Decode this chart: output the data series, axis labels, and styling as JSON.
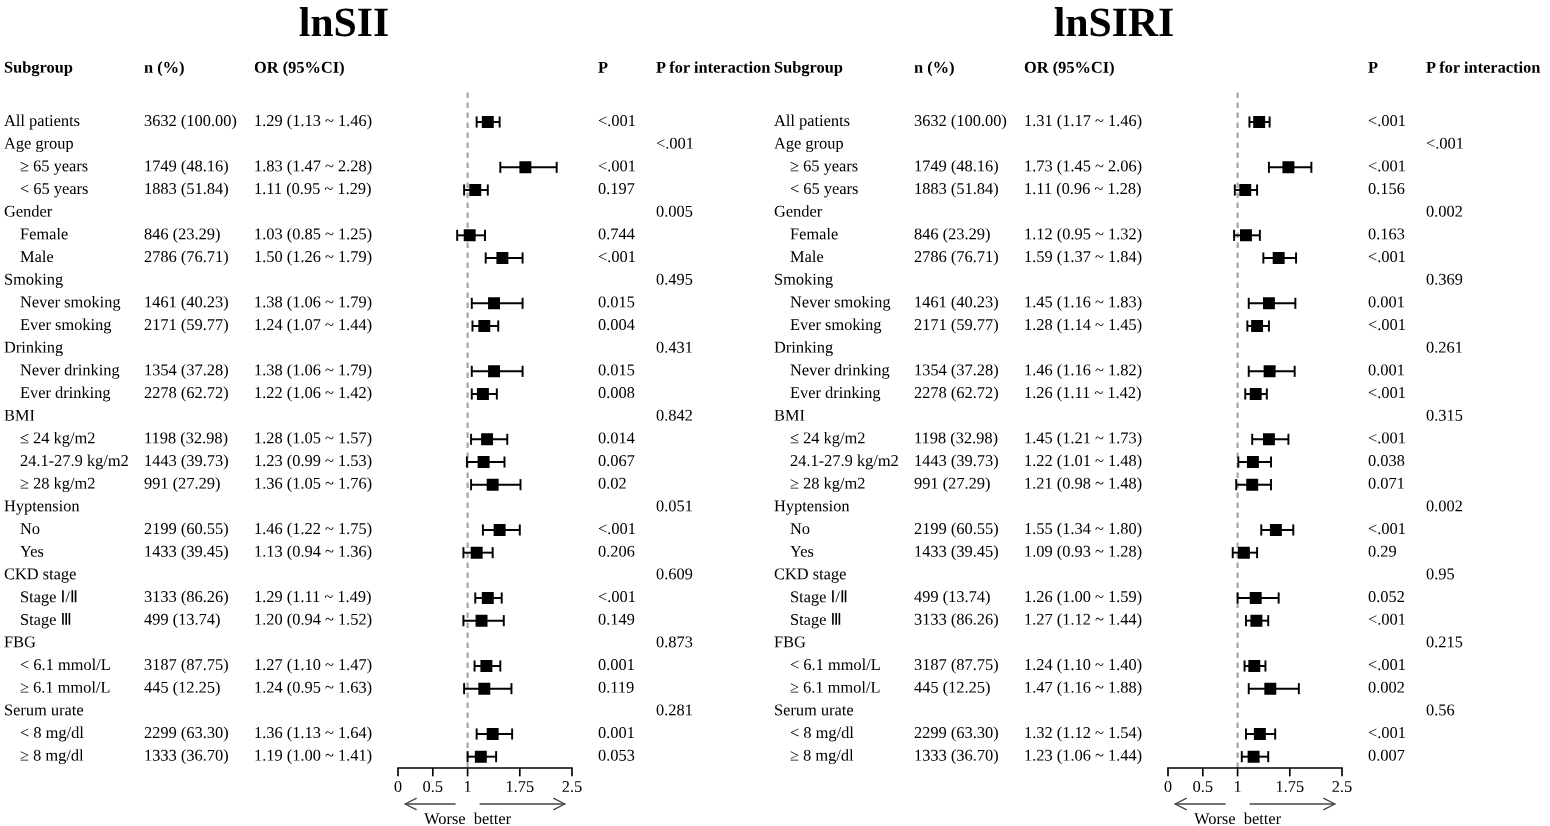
{
  "chart_data": [
    {
      "type": "scatter",
      "orientation": "horizontal",
      "title": "lnSII",
      "ylabel": "Subgroup",
      "xlabel": "Worse  better",
      "categories": [
        null,
        "All patients",
        "Age group",
        "≥ 65 years",
        "< 65 years",
        "Gender",
        "Female",
        "Male",
        "Smoking",
        "Never smoking",
        "Ever smoking",
        "Drinking",
        "Never drinking",
        "Ever drinking",
        "BMI",
        "≤ 24 kg/m2",
        "24.1-27.9 kg/m2",
        "≥ 28 kg/m2",
        "Hyptension",
        "No",
        "Yes",
        "CKD stage",
        "Stage Ⅰ/Ⅱ",
        "Stage Ⅲ",
        "FBG",
        "< 6.1 mmol/L",
        "≥ 6.1 mmol/L",
        "Serum urate",
        "< 8 mg/dl",
        "≥ 8 mg/dl"
      ],
      "series": [
        {
          "color": "#000000",
          "values": [
            null,
            1.29,
            null,
            1.83,
            1.11,
            null,
            1.03,
            1.5,
            null,
            1.38,
            1.24,
            null,
            1.38,
            1.22,
            null,
            1.28,
            1.23,
            1.36,
            null,
            1.46,
            1.13,
            null,
            1.29,
            1.2,
            null,
            1.27,
            1.24,
            null,
            1.36,
            1.19
          ],
          "errors": [
            null,
            [
              1.13,
              1.46
            ],
            null,
            [
              1.47,
              2.28
            ],
            [
              0.95,
              1.29
            ],
            null,
            [
              0.85,
              1.25
            ],
            [
              1.26,
              1.79
            ],
            null,
            [
              1.06,
              1.79
            ],
            [
              1.07,
              1.44
            ],
            null,
            [
              1.06,
              1.79
            ],
            [
              1.06,
              1.42
            ],
            null,
            [
              1.05,
              1.57
            ],
            [
              0.99,
              1.53
            ],
            [
              1.05,
              1.76
            ],
            null,
            [
              1.22,
              1.75
            ],
            [
              0.94,
              1.36
            ],
            null,
            [
              1.11,
              1.49
            ],
            [
              0.94,
              1.52
            ],
            null,
            [
              1.1,
              1.47
            ],
            [
              0.95,
              1.63
            ],
            null,
            [
              1.13,
              1.64
            ],
            [
              1.0,
              1.41
            ]
          ],
          "value_labels": [
            null,
            "1.29 (1.13 ~ 1.46)",
            null,
            "1.83 (1.47 ~ 2.28)",
            "1.11 (0.95 ~ 1.29)",
            null,
            "1.03 (0.85 ~ 1.25)",
            "1.50 (1.26 ~ 1.79)",
            null,
            "1.38 (1.06 ~ 1.79)",
            "1.24 (1.07 ~ 1.44)",
            null,
            "1.38 (1.06 ~ 1.79)",
            "1.22 (1.06 ~ 1.42)",
            null,
            "1.28 (1.05 ~ 1.57)",
            "1.23 (0.99 ~ 1.53)",
            "1.36 (1.05 ~ 1.76)",
            null,
            "1.46 (1.22 ~ 1.75)",
            "1.13 (0.94 ~ 1.36)",
            null,
            "1.29 (1.11 ~ 1.49)",
            "1.20 (0.94 ~ 1.52)",
            null,
            "1.27 (1.10 ~ 1.47)",
            "1.24 (0.95 ~ 1.63)",
            null,
            "1.36 (1.13 ~ 1.64)",
            "1.19 (1.00 ~ 1.41)"
          ]
        }
      ],
      "marker": "square",
      "xlim": [
        0,
        2.5
      ],
      "xticks": [
        0,
        0.5,
        1,
        1.75,
        2.5
      ],
      "grid": false,
      "tick_labels": "x",
      "ref_lines": [
        {
          "axis": "x",
          "value": 1,
          "color": "#a6a6a6",
          "line_style": "dashed"
        }
      ],
      "annotations": [
        "n (%)",
        "OR (95%CI)",
        "P",
        "P for interaction",
        "3632 (100.00)",
        "<.001",
        "<.001",
        "1749 (48.16)",
        "<.001",
        "1883 (51.84)",
        "0.197",
        "0.005",
        "846 (23.29)",
        "0.744",
        "2786 (76.71)",
        "<.001",
        "0.495",
        "1461 (40.23)",
        "0.015",
        "2171 (59.77)",
        "0.004",
        "0.431",
        "1354 (37.28)",
        "0.015",
        "2278 (62.72)",
        "0.008",
        "0.842",
        "1198 (32.98)",
        "0.014",
        "1443 (39.73)",
        "0.067",
        "991 (27.29)",
        "0.02",
        "0.051",
        "2199 (60.55)",
        "<.001",
        "1433 (39.45)",
        "0.206",
        "0.609",
        "3133 (86.26)",
        "<.001",
        "499 (13.74)",
        "0.149",
        "0.873",
        "3187 (87.75)",
        "0.001",
        "445 (12.25)",
        "0.119",
        "0.281",
        "2299 (63.30)",
        "0.001",
        "1333 (36.70)",
        "0.053"
      ]
    },
    {
      "type": "scatter",
      "orientation": "horizontal",
      "title": "lnSIRI",
      "ylabel": "Subgroup",
      "xlabel": "Worse  better",
      "categories": [
        null,
        "All patients",
        "Age group",
        "≥ 65 years",
        "< 65 years",
        "Gender",
        "Female",
        "Male",
        "Smoking",
        "Never smoking",
        "Ever smoking",
        "Drinking",
        "Never drinking",
        "Ever drinking",
        "BMI",
        "≤ 24 kg/m2",
        "24.1-27.9 kg/m2",
        "≥ 28 kg/m2",
        "Hyptension",
        "No",
        "Yes",
        "CKD stage",
        "Stage Ⅰ/Ⅱ",
        "Stage Ⅲ",
        "FBG",
        "< 6.1 mmol/L",
        "≥ 6.1 mmol/L",
        "Serum urate",
        "< 8 mg/dl",
        "≥ 8 mg/dl"
      ],
      "series": [
        {
          "color": "#000000",
          "values": [
            null,
            1.31,
            null,
            1.73,
            1.11,
            null,
            1.12,
            1.59,
            null,
            1.45,
            1.28,
            null,
            1.46,
            1.26,
            null,
            1.45,
            1.22,
            1.21,
            null,
            1.55,
            1.09,
            null,
            1.26,
            1.27,
            null,
            1.24,
            1.47,
            null,
            1.32,
            1.23
          ],
          "errors": [
            null,
            [
              1.17,
              1.46
            ],
            null,
            [
              1.45,
              2.06
            ],
            [
              0.96,
              1.28
            ],
            null,
            [
              0.95,
              1.32
            ],
            [
              1.37,
              1.84
            ],
            null,
            [
              1.16,
              1.83
            ],
            [
              1.14,
              1.45
            ],
            null,
            [
              1.16,
              1.82
            ],
            [
              1.11,
              1.42
            ],
            null,
            [
              1.21,
              1.73
            ],
            [
              1.01,
              1.48
            ],
            [
              0.98,
              1.48
            ],
            null,
            [
              1.34,
              1.8
            ],
            [
              0.93,
              1.28
            ],
            null,
            [
              1.0,
              1.59
            ],
            [
              1.12,
              1.44
            ],
            null,
            [
              1.1,
              1.4
            ],
            [
              1.16,
              1.88
            ],
            null,
            [
              1.12,
              1.54
            ],
            [
              1.06,
              1.44
            ]
          ],
          "value_labels": [
            null,
            "1.31 (1.17 ~ 1.46)",
            null,
            "1.73 (1.45 ~ 2.06)",
            "1.11 (0.96 ~ 1.28)",
            null,
            "1.12 (0.95 ~ 1.32)",
            "1.59 (1.37 ~ 1.84)",
            null,
            "1.45 (1.16 ~ 1.83)",
            "1.28 (1.14 ~ 1.45)",
            null,
            "1.46 (1.16 ~ 1.82)",
            "1.26 (1.11 ~ 1.42)",
            null,
            "1.45 (1.21 ~ 1.73)",
            "1.22 (1.01 ~ 1.48)",
            "1.21 (0.98 ~ 1.48)",
            null,
            "1.55 (1.34 ~ 1.80)",
            "1.09 (0.93 ~ 1.28)",
            null,
            "1.26 (1.00 ~ 1.59)",
            "1.27 (1.12 ~ 1.44)",
            null,
            "1.24 (1.10 ~ 1.40)",
            "1.47 (1.16 ~ 1.88)",
            null,
            "1.32 (1.12 ~ 1.54)",
            "1.23 (1.06 ~ 1.44)"
          ]
        }
      ],
      "marker": "square",
      "xlim": [
        0,
        2.5
      ],
      "xticks": [
        0,
        0.5,
        1,
        1.75,
        2.5
      ],
      "grid": false,
      "tick_labels": "x",
      "ref_lines": [
        {
          "axis": "x",
          "value": 1,
          "color": "#a6a6a6",
          "line_style": "dashed"
        }
      ],
      "annotations": [
        "n (%)",
        "OR (95%CI)",
        "P",
        "P for interaction",
        "3632 (100.00)",
        "<.001",
        "<.001",
        "1749 (48.16)",
        "<.001",
        "1883 (51.84)",
        "0.156",
        "0.002",
        "846 (23.29)",
        "0.163",
        "2786 (76.71)",
        "<.001",
        "0.369",
        "1461 (40.23)",
        "0.001",
        "2171 (59.77)",
        "<.001",
        "0.261",
        "1354 (37.28)",
        "0.001",
        "2278 (62.72)",
        "<.001",
        "0.315",
        "1198 (32.98)",
        "<.001",
        "1443 (39.73)",
        "0.038",
        "991 (27.29)",
        "0.071",
        "0.002",
        "2199 (60.55)",
        "<.001",
        "1433 (39.45)",
        "0.29",
        "0.95",
        "499 (13.74)",
        "0.052",
        "3133 (86.26)",
        "<.001",
        "0.215",
        "3187 (87.75)",
        "<.001",
        "445 (12.25)",
        "0.002",
        "0.56",
        "2299 (63.30)",
        "<.001",
        "1333 (36.70)",
        "0.007"
      ]
    }
  ]
}
